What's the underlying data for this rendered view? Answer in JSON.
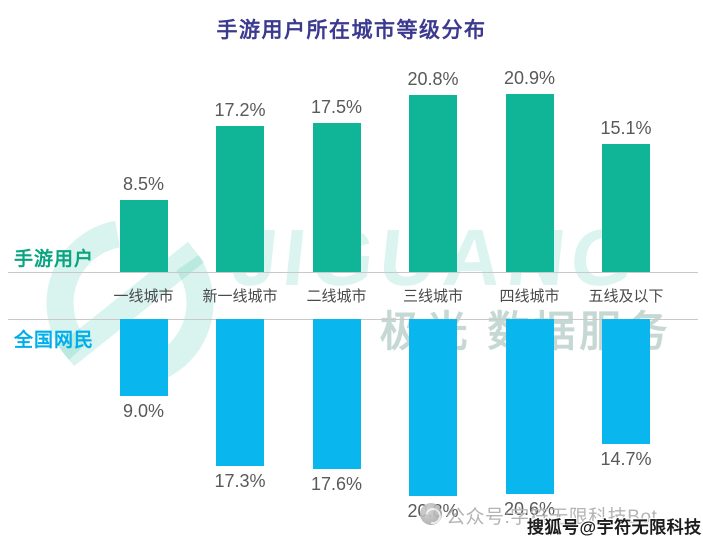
{
  "title": "手游用户所在城市等级分布",
  "colors": {
    "title": "#3c3a8f",
    "bar_green": "#10b496",
    "bar_blue": "#0ab6ee",
    "series_label_green": "#0aa580",
    "series_label_blue": "#00aeeb",
    "value_label": "#595959",
    "category_label": "#4a4a4a",
    "axis_line": "#c9c9c9",
    "watermark_gray_text": "#b4b4b4"
  },
  "chart_data": {
    "type": "bar",
    "title": "手游用户所在城市等级分布",
    "categories": [
      "一线城市",
      "新一线城市",
      "二线城市",
      "三线城市",
      "四线城市",
      "五线及以下"
    ],
    "series": [
      {
        "name": "手游用户",
        "values": [
          8.5,
          17.2,
          17.5,
          20.8,
          20.9,
          15.1
        ],
        "color": "#10b496",
        "direction": "up"
      },
      {
        "name": "全国网民",
        "values": [
          9.0,
          17.3,
          17.6,
          20.8,
          20.6,
          14.7
        ],
        "color": "#0ab6ee",
        "direction": "down"
      }
    ],
    "value_suffix": "%",
    "xlabel": "",
    "ylabel": "",
    "ylim": [
      0,
      22
    ],
    "grid": false,
    "legend_position": "left",
    "orientation": "mirrored-vertical"
  },
  "watermarks": {
    "brand_text": "JIGUANG",
    "brand_subtext": "— 极光 数据服务",
    "bottom_gray": "公众号:字符无限科技Bot.",
    "bottom_dark": "搜狐号@宇符无限科技"
  }
}
